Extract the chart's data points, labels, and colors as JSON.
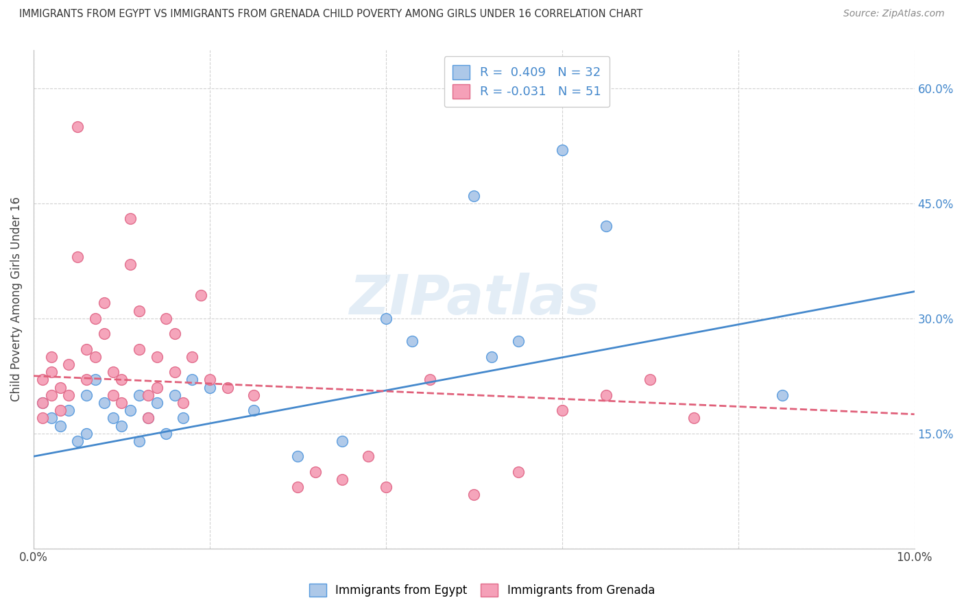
{
  "title": "IMMIGRANTS FROM EGYPT VS IMMIGRANTS FROM GRENADA CHILD POVERTY AMONG GIRLS UNDER 16 CORRELATION CHART",
  "source": "Source: ZipAtlas.com",
  "ylabel": "Child Poverty Among Girls Under 16",
  "xlim": [
    0.0,
    0.1
  ],
  "ylim": [
    0.0,
    0.65
  ],
  "xtick_positions": [
    0.0,
    0.02,
    0.04,
    0.06,
    0.08,
    0.1
  ],
  "xtick_labels": [
    "0.0%",
    "",
    "",
    "",
    "",
    "10.0%"
  ],
  "ytick_positions": [
    0.0,
    0.15,
    0.3,
    0.45,
    0.6
  ],
  "ytick_labels": [
    "",
    "15.0%",
    "30.0%",
    "45.0%",
    "60.0%"
  ],
  "egypt_color": "#adc8e8",
  "grenada_color": "#f5a0b8",
  "egypt_edge_color": "#5599dd",
  "grenada_edge_color": "#e06888",
  "egypt_R": 0.409,
  "egypt_N": 32,
  "grenada_R": -0.031,
  "grenada_N": 51,
  "egypt_line_color": "#4488cc",
  "grenada_line_color": "#e0607a",
  "watermark": "ZIPatlas",
  "egypt_line_x": [
    0.0,
    0.1
  ],
  "egypt_line_y": [
    0.12,
    0.335
  ],
  "grenada_line_x": [
    0.0,
    0.1
  ],
  "grenada_line_y": [
    0.225,
    0.175
  ],
  "egypt_scatter_x": [
    0.001,
    0.002,
    0.003,
    0.004,
    0.005,
    0.006,
    0.006,
    0.007,
    0.008,
    0.009,
    0.01,
    0.011,
    0.012,
    0.012,
    0.013,
    0.014,
    0.015,
    0.016,
    0.017,
    0.018,
    0.02,
    0.025,
    0.03,
    0.035,
    0.04,
    0.043,
    0.05,
    0.052,
    0.055,
    0.06,
    0.065,
    0.085
  ],
  "egypt_scatter_y": [
    0.19,
    0.17,
    0.16,
    0.18,
    0.14,
    0.15,
    0.2,
    0.22,
    0.19,
    0.17,
    0.16,
    0.18,
    0.14,
    0.2,
    0.17,
    0.19,
    0.15,
    0.2,
    0.17,
    0.22,
    0.21,
    0.18,
    0.12,
    0.14,
    0.3,
    0.27,
    0.46,
    0.25,
    0.27,
    0.52,
    0.42,
    0.2
  ],
  "grenada_scatter_x": [
    0.001,
    0.001,
    0.001,
    0.002,
    0.002,
    0.002,
    0.003,
    0.003,
    0.004,
    0.004,
    0.005,
    0.005,
    0.006,
    0.006,
    0.007,
    0.007,
    0.008,
    0.008,
    0.009,
    0.009,
    0.01,
    0.01,
    0.011,
    0.011,
    0.012,
    0.012,
    0.013,
    0.013,
    0.014,
    0.014,
    0.015,
    0.016,
    0.016,
    0.017,
    0.018,
    0.019,
    0.02,
    0.022,
    0.025,
    0.03,
    0.032,
    0.035,
    0.038,
    0.04,
    0.045,
    0.05,
    0.055,
    0.06,
    0.065,
    0.07,
    0.075
  ],
  "grenada_scatter_y": [
    0.22,
    0.19,
    0.17,
    0.25,
    0.2,
    0.23,
    0.21,
    0.18,
    0.24,
    0.2,
    0.55,
    0.38,
    0.26,
    0.22,
    0.3,
    0.25,
    0.32,
    0.28,
    0.2,
    0.23,
    0.19,
    0.22,
    0.43,
    0.37,
    0.31,
    0.26,
    0.2,
    0.17,
    0.25,
    0.21,
    0.3,
    0.28,
    0.23,
    0.19,
    0.25,
    0.33,
    0.22,
    0.21,
    0.2,
    0.08,
    0.1,
    0.09,
    0.12,
    0.08,
    0.22,
    0.07,
    0.1,
    0.18,
    0.2,
    0.22,
    0.17
  ]
}
